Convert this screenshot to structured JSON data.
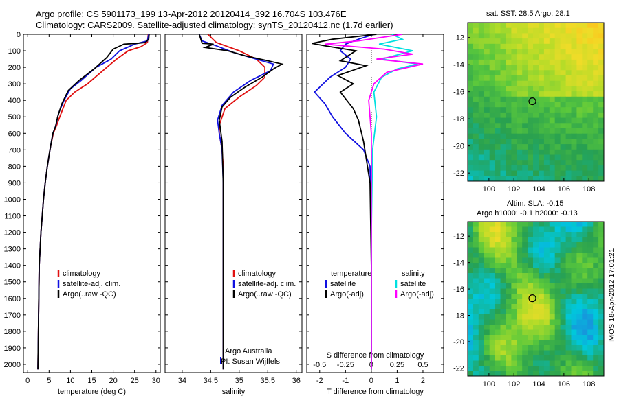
{
  "header": {
    "line1": "Argo profile: CS 5901173_199 13-Apr-2012 20120414_392 16.704S 103.476E",
    "line2": "Climatology: CARS2009. Satellite-adjusted climatology: synTS_20120412.nc (1.7d earlier)"
  },
  "colors": {
    "climatology": "#e01010",
    "satellite": "#1010e0",
    "argo": "#000000",
    "sal_satellite": "#00e0e0",
    "sal_argo": "#ff00ff"
  },
  "chart_data": [
    {
      "type": "line",
      "id": "temperature",
      "xlabel": "temperature (deg C)",
      "ylabel": "",
      "xlim": [
        -1,
        31
      ],
      "ylim": [
        2050,
        0
      ],
      "xticks": [
        0,
        5,
        10,
        15,
        20,
        25,
        30
      ],
      "yticks": [
        0,
        100,
        200,
        300,
        400,
        500,
        600,
        700,
        800,
        900,
        1000,
        1100,
        1200,
        1300,
        1400,
        1500,
        1600,
        1700,
        1800,
        1900,
        2000
      ],
      "legend": [
        "climatology",
        "satellite-adj. clim.",
        "Argo(..raw -QC)"
      ],
      "series": [
        {
          "name": "climatology",
          "color_key": "climatology",
          "x": [
            28.2,
            28.0,
            26.5,
            23.5,
            20.8,
            18.5,
            14,
            11,
            9,
            7.5,
            6.8,
            6,
            5.2,
            4.6,
            4.1,
            3.7,
            3.4,
            3.1,
            2.9,
            2.7,
            2.6,
            2.5,
            2.4
          ],
          "y": [
            0,
            50,
            75,
            100,
            150,
            200,
            300,
            350,
            400,
            500,
            550,
            600,
            700,
            800,
            900,
            1000,
            1100,
            1200,
            1300,
            1400,
            1600,
            1800,
            2030
          ]
        },
        {
          "name": "satellite-adj. clim.",
          "color_key": "satellite",
          "x": [
            28.3,
            28.0,
            25,
            21.5,
            19.5,
            16,
            12.5,
            10,
            8.5,
            7.2,
            6.6,
            5.9,
            5.2,
            4.6,
            4.1,
            3.7,
            3.4,
            3.1,
            2.9,
            2.7,
            2.6,
            2.5,
            2.4
          ],
          "y": [
            0,
            40,
            60,
            100,
            150,
            200,
            280,
            330,
            400,
            480,
            550,
            600,
            700,
            800,
            900,
            1000,
            1100,
            1200,
            1300,
            1400,
            1600,
            1800,
            2030
          ]
        },
        {
          "name": "Argo(..raw -QC)",
          "color_key": "argo",
          "x": [
            28.4,
            28.3,
            27.5,
            25.5,
            22.5,
            20,
            18.5,
            15.5,
            12,
            9.5,
            8,
            7,
            6.5,
            5.9,
            5.2,
            4.6,
            4.1,
            3.7,
            3.4,
            3.1,
            2.9,
            2.7,
            2.6,
            2.5,
            2.4
          ],
          "y": [
            0,
            30,
            50,
            55,
            60,
            90,
            140,
            210,
            280,
            340,
            420,
            500,
            560,
            600,
            700,
            800,
            900,
            1000,
            1100,
            1200,
            1300,
            1400,
            1600,
            1800,
            2030
          ]
        }
      ]
    },
    {
      "type": "line",
      "id": "salinity",
      "xlabel": "salinity",
      "xlim": [
        33.7,
        36.1
      ],
      "ylim": [
        2050,
        0
      ],
      "xticks": [
        34,
        34.5,
        35,
        35.5,
        36
      ],
      "legend": [
        "climatology",
        "satellite-adj. clim.",
        "Argo(..raw -QC)"
      ],
      "annotation": [
        "Argo Australia",
        "PI: Susan Wijffels"
      ],
      "series": [
        {
          "name": "climatology",
          "color_key": "climatology",
          "x": [
            34.45,
            34.6,
            35.0,
            35.3,
            35.45,
            35.45,
            35.3,
            35.0,
            34.75,
            34.65,
            34.65,
            34.7,
            34.72,
            34.72,
            34.72,
            34.72,
            34.72
          ],
          "y": [
            0,
            50,
            100,
            150,
            200,
            260,
            310,
            380,
            450,
            550,
            600,
            700,
            800,
            1000,
            1300,
            1700,
            2030
          ]
        },
        {
          "name": "satellite-adj. clim.",
          "color_key": "satellite",
          "x": [
            34.3,
            34.35,
            34.6,
            34.9,
            35.3,
            35.6,
            35.55,
            35.2,
            34.9,
            34.7,
            34.62,
            34.65,
            34.7,
            34.72,
            34.72,
            34.72,
            34.72
          ],
          "y": [
            0,
            40,
            70,
            110,
            150,
            180,
            220,
            280,
            350,
            430,
            520,
            600,
            700,
            900,
            1300,
            1700,
            2030
          ]
        },
        {
          "name": "Argo(..raw -QC)",
          "color_key": "argo",
          "x": [
            34.3,
            34.35,
            34.55,
            34.4,
            34.8,
            35.1,
            35.5,
            35.75,
            35.6,
            35.4,
            35.1,
            34.85,
            34.7,
            34.65,
            34.7,
            34.72,
            34.72,
            34.72
          ],
          "y": [
            0,
            55,
            60,
            80,
            100,
            130,
            160,
            180,
            210,
            260,
            320,
            380,
            440,
            520,
            650,
            900,
            1400,
            2030
          ]
        }
      ]
    },
    {
      "type": "line",
      "id": "differences",
      "xlabel": "T difference from climatology",
      "xlabel_top": "S difference from climatology",
      "xlim": [
        -2.5,
        2.8
      ],
      "xticks": [
        -2,
        -1,
        0,
        1,
        2
      ],
      "xticks_top": [
        -0.5,
        -0.25,
        0,
        0.25,
        0.5
      ],
      "ylim": [
        2050,
        0
      ],
      "legend_titles": [
        "temperature",
        "salinity"
      ],
      "legend": [
        "satellite",
        "Argo(-adj)",
        "satellite",
        "Argo(-adj)"
      ],
      "series": [
        {
          "name": "satellite",
          "color_key": "satellite",
          "x": [
            0.1,
            -0.5,
            -1.0,
            -1.2,
            -0.8,
            -1.0,
            -1.6,
            -2.2,
            -1.8,
            -1.5,
            -1.0,
            -0.3,
            -0.05,
            0,
            0
          ],
          "y": [
            0,
            30,
            60,
            100,
            150,
            200,
            260,
            350,
            420,
            500,
            600,
            700,
            800,
            1200,
            2030
          ]
        },
        {
          "name": "Argo(-adj)",
          "color_key": "argo",
          "x": [
            0.2,
            -1.5,
            -2.3,
            -1.8,
            -0.6,
            -1.2,
            -0.2,
            -1.3,
            -0.7,
            -1.2,
            -0.7,
            -0.5,
            -0.3,
            -0.05,
            0,
            0
          ],
          "y": [
            0,
            30,
            55,
            70,
            100,
            160,
            190,
            250,
            300,
            350,
            450,
            520,
            650,
            900,
            1400,
            2030
          ]
        },
        {
          "name": "satellite",
          "color_key": "sal_satellite",
          "x": [
            0.8,
            1.2,
            0.3,
            1.6,
            0.4,
            1.8,
            1.0,
            0.4,
            0.1,
            0.2,
            0.05,
            0,
            0
          ],
          "y": [
            0,
            30,
            60,
            100,
            150,
            180,
            210,
            260,
            350,
            500,
            700,
            1200,
            2030
          ]
        },
        {
          "name": "Argo(-adj)",
          "color_key": "sal_argo",
          "x": [
            1.2,
            -0.5,
            -1.8,
            0.5,
            1.6,
            0.2,
            2.0,
            0.6,
            0.1,
            -0.1,
            0,
            0
          ],
          "y": [
            0,
            40,
            60,
            90,
            120,
            150,
            180,
            230,
            300,
            400,
            600,
            2030
          ]
        }
      ]
    }
  ],
  "maps": {
    "sst_title": "sat. SST: 28.5 Argo: 28.1",
    "sla_title1": "Altim. SLA: -0.15",
    "sla_title2": "Argo h1000: -0.1 h2000: -0.13",
    "yticks_sst": [
      -12,
      -14,
      -16,
      -18,
      -20,
      -22
    ],
    "yticks_sla": [
      -12,
      -14,
      -16,
      -18,
      -20,
      -22
    ],
    "xticks": [
      100,
      102,
      104,
      106,
      108
    ],
    "marker": {
      "lon": 103.476,
      "lat": -16.704
    }
  },
  "watermark": "IMOS 18-Apr-2012 17:01:21"
}
